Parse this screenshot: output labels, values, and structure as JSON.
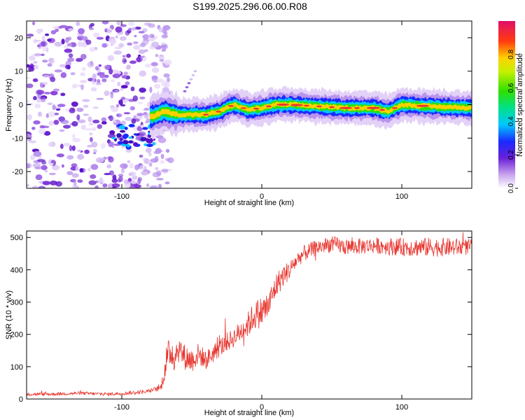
{
  "title": "S199.2025.296.06.00.R08",
  "colors": {
    "snr_line": "#e8362f",
    "axis": "#000000",
    "noise_purple": "#7b2fd6",
    "band_core": "#e8362f"
  },
  "chart_data": [
    {
      "type": "heatmap",
      "name": "spectrogram",
      "title": "S199.2025.296.06.00.R08",
      "xlabel": "Height of straight line (km)",
      "ylabel": "Frequency (Hz)",
      "xlim": [
        -168,
        150
      ],
      "ylim": [
        -25,
        25
      ],
      "x_ticks": [
        -100,
        0,
        100
      ],
      "x_tick_labels": [
        "-100",
        "0",
        "100"
      ],
      "y_ticks": [
        -20,
        -10,
        0,
        10,
        20
      ],
      "y_tick_labels": [
        "-20",
        "-10",
        "0",
        "10",
        "20"
      ],
      "colorbar": {
        "label": "Normalized spectral amplitude",
        "range": [
          0,
          1
        ],
        "ticks": [
          0,
          0.2,
          0.4,
          0.6,
          0.8
        ],
        "tick_labels": [
          "0.0",
          "0.2",
          "0.4",
          "0.6",
          "0.8"
        ]
      },
      "noise_region_x": [
        -168,
        -75
      ],
      "band_center_hz": [
        [
          -78,
          -3.5
        ],
        [
          -70,
          -2
        ],
        [
          -60,
          -3
        ],
        [
          -50,
          -3
        ],
        [
          -40,
          -3
        ],
        [
          -30,
          -2
        ],
        [
          -20,
          0
        ],
        [
          -10,
          -1.5
        ],
        [
          0,
          -1
        ],
        [
          10,
          0
        ],
        [
          20,
          0
        ],
        [
          40,
          -0.5
        ],
        [
          60,
          -1
        ],
        [
          80,
          -1
        ],
        [
          90,
          -2
        ],
        [
          100,
          0
        ],
        [
          120,
          -0.5
        ],
        [
          150,
          -1
        ]
      ],
      "band_peaks_km": [
        15,
        25,
        60,
        80,
        115
      ]
    },
    {
      "type": "line",
      "name": "snr",
      "title": "",
      "xlabel": "Height of straight line (km)",
      "ylabel": "SNR (10 * v/v)",
      "xlim": [
        -168,
        150
      ],
      "ylim": [
        0,
        520
      ],
      "x_ticks": [
        -100,
        0,
        100
      ],
      "x_tick_labels": [
        "-100",
        "0",
        "100"
      ],
      "y_ticks": [
        0,
        100,
        200,
        300,
        400,
        500
      ],
      "y_tick_labels": [
        "0",
        "100",
        "200",
        "300",
        "400",
        "500"
      ],
      "series": [
        {
          "name": "SNR",
          "x": [
            -168,
            -150,
            -130,
            -110,
            -90,
            -80,
            -72,
            -68,
            -65,
            -62,
            -60,
            -55,
            -50,
            -45,
            -40,
            -30,
            -20,
            -10,
            -5,
            0,
            5,
            10,
            15,
            20,
            25,
            30,
            40,
            50,
            60,
            80,
            100,
            120,
            140,
            150
          ],
          "values": [
            15,
            15,
            18,
            15,
            20,
            25,
            35,
            120,
            150,
            130,
            160,
            130,
            120,
            140,
            120,
            160,
            190,
            230,
            260,
            270,
            290,
            350,
            380,
            400,
            430,
            450,
            470,
            480,
            470,
            475,
            470,
            470,
            470,
            470
          ],
          "noise_amplitude": [
            5,
            5,
            5,
            5,
            6,
            6,
            10,
            50,
            50,
            50,
            45,
            40,
            40,
            35,
            30,
            30,
            30,
            40,
            45,
            50,
            45,
            40,
            35,
            30,
            25,
            25,
            25,
            25,
            25,
            25,
            28,
            30,
            28,
            25
          ]
        }
      ]
    }
  ]
}
